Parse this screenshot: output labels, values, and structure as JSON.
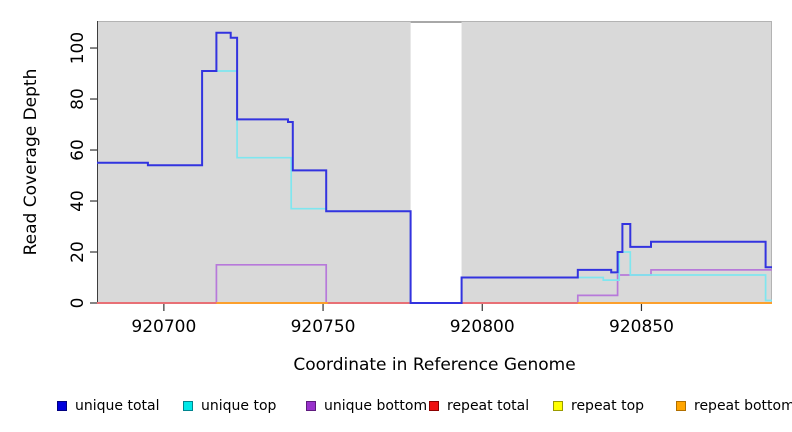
{
  "chart_data": {
    "type": "line",
    "step": true,
    "title": "",
    "xlabel": "Coordinate in Reference Genome",
    "ylabel": "Read Coverage Depth",
    "xlim": [
      920679,
      920891
    ],
    "ylim": [
      0,
      110.6
    ],
    "xticks": [
      920700,
      920750,
      920800,
      920850
    ],
    "yticks": [
      0,
      20,
      40,
      60,
      80,
      100
    ],
    "grid": false,
    "legend_position": "bottom",
    "plot_bg_color": "#d9d9d9",
    "border_color": "#b3b3b3",
    "axis_spine_color": "#3d3d3d",
    "tick_color": "#333333",
    "gap_region": {
      "x0": 920777.5,
      "x1": 920793.5,
      "fill": "#ffffff",
      "top_line_color": "#8c8c8c"
    },
    "draw_order": [
      2,
      4,
      3,
      5,
      1,
      0
    ],
    "series": [
      {
        "name": "unique total",
        "legend_color": "#0000dc",
        "legend_border": "#000080",
        "line_color": "#3333df",
        "line_width": 2,
        "segments": [
          [
            [
              920679,
              55
            ],
            [
              920695,
              54
            ],
            [
              920712,
              91
            ],
            [
              920716.5,
              106
            ],
            [
              920721,
              104
            ],
            [
              920723,
              72
            ],
            [
              920739,
              71
            ],
            [
              920740.5,
              52
            ],
            [
              920751,
              36
            ],
            [
              920777.5,
              0
            ],
            [
              920793.5,
              10
            ],
            [
              920830,
              13
            ],
            [
              920840.5,
              12
            ],
            [
              920842.5,
              20
            ],
            [
              920844,
              31
            ],
            [
              920846.5,
              22
            ],
            [
              920853,
              24
            ],
            [
              920889,
              14
            ],
            [
              920891,
              14
            ]
          ]
        ]
      },
      {
        "name": "unique top",
        "legend_color": "#00e8e8",
        "legend_border": "#00858f",
        "line_color": "#7fe6ef",
        "line_width": 1.7,
        "segments": [
          [
            [
              920679,
              55
            ],
            [
              920695,
              54
            ],
            [
              920712,
              91
            ],
            [
              920723,
              57
            ],
            [
              920740,
              37
            ],
            [
              920751,
              36
            ],
            [
              920777.5,
              0
            ],
            [
              920793.5,
              10
            ],
            [
              920838,
              9
            ],
            [
              920843,
              20
            ],
            [
              920846.5,
              11
            ],
            [
              920889,
              1
            ],
            [
              920891,
              1
            ]
          ]
        ]
      },
      {
        "name": "unique bottom",
        "legend_color": "#9932cc",
        "legend_border": "#5e1b7e",
        "line_color": "#b779da",
        "line_width": 1.7,
        "segments": [
          [
            [
              920679,
              0
            ],
            [
              920716.5,
              15
            ],
            [
              920751,
              0
            ],
            [
              920830,
              3
            ],
            [
              920842.5,
              11
            ],
            [
              920853,
              13
            ],
            [
              920891,
              13
            ]
          ]
        ]
      },
      {
        "name": "repeat total",
        "legend_color": "#ee1111",
        "legend_border": "#8b0000",
        "line_color": "#e8607f",
        "line_width": 1.7,
        "segments": [
          [
            [
              920679,
              0
            ],
            [
              920891,
              0
            ]
          ]
        ]
      },
      {
        "name": "repeat top",
        "legend_color": "#ffff00",
        "legend_border": "#9a9a00",
        "line_color": "#f5f500",
        "line_width": 1.7,
        "segments": [
          [
            [
              920679,
              0
            ],
            [
              920891,
              0
            ]
          ]
        ]
      },
      {
        "name": "repeat bottom",
        "legend_color": "#ffa500",
        "legend_border": "#b06f00",
        "line_color": "#ffa424",
        "line_width": 1.7,
        "segments": [
          [
            [
              920716.5,
              0
            ],
            [
              920751.5,
              0
            ]
          ],
          [
            [
              920830,
              0
            ],
            [
              920891,
              0
            ]
          ]
        ]
      }
    ]
  },
  "legend": {
    "items": [
      {
        "label": "unique total"
      },
      {
        "label": "unique top"
      },
      {
        "label": "unique bottom"
      },
      {
        "label": "repeat total"
      },
      {
        "label": "repeat top"
      },
      {
        "label": "repeat bottom"
      }
    ]
  }
}
